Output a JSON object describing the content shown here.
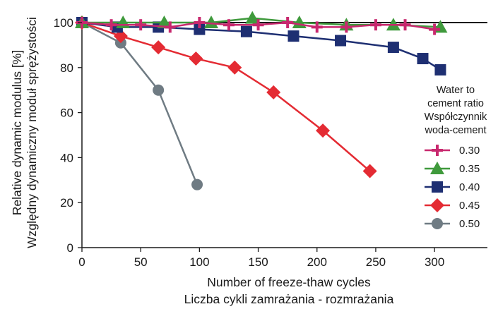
{
  "chart_data": {
    "type": "line",
    "xlabel": [
      "Number of freeze-thaw cycles",
      "Liczba cykli zamrażania - rozmrażania"
    ],
    "ylabel": [
      "Relative dynamic modulus [%]",
      "Względny dynamiczny moduł sprężystości"
    ],
    "xlim": [
      0,
      345
    ],
    "ylim": [
      0,
      100
    ],
    "x_ticks": [
      0,
      50,
      100,
      150,
      200,
      250,
      300
    ],
    "y_ticks": [
      0,
      20,
      40,
      60,
      80,
      100
    ],
    "reference_line_y": 100,
    "grid": false,
    "legend_title": [
      "Water to",
      "cement ratio",
      "Współczynnik",
      "woda-cement"
    ],
    "legend_position": "right",
    "series": [
      {
        "name": "0.30",
        "color": "#c8286e",
        "marker": "plus",
        "x": [
          0,
          25,
          50,
          75,
          100,
          125,
          150,
          175,
          200,
          225,
          250,
          275,
          300
        ],
        "y": [
          100,
          99,
          99,
          98,
          100,
          99,
          99,
          100,
          98,
          98,
          99,
          99,
          97
        ]
      },
      {
        "name": "0.35",
        "color": "#3f9a3c",
        "marker": "triangle",
        "x": [
          0,
          35,
          70,
          110,
          145,
          185,
          225,
          265,
          305
        ],
        "y": [
          100,
          100,
          100,
          100,
          102,
          100,
          99,
          99,
          98
        ]
      },
      {
        "name": "0.40",
        "color": "#1e2f72",
        "marker": "square",
        "x": [
          0,
          30,
          65,
          100,
          140,
          180,
          220,
          265,
          290,
          305
        ],
        "y": [
          100,
          98,
          98,
          97,
          96,
          94,
          92,
          89,
          84,
          79
        ]
      },
      {
        "name": "0.45",
        "color": "#e42b33",
        "marker": "diamond",
        "x": [
          0,
          33,
          65,
          97,
          130,
          163,
          205,
          245
        ],
        "y": [
          100,
          94,
          89,
          84,
          80,
          69,
          52,
          34
        ]
      },
      {
        "name": "0.50",
        "color": "#6f7b83",
        "marker": "circle",
        "x": [
          0,
          33,
          65,
          98
        ],
        "y": [
          100,
          91,
          70,
          28
        ]
      }
    ]
  }
}
